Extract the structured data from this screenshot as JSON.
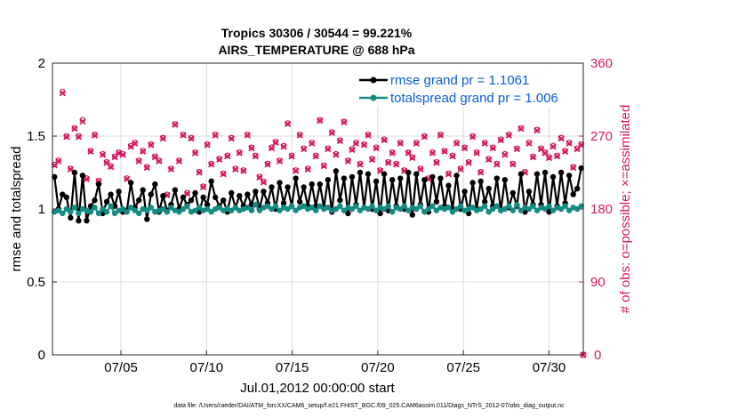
{
  "chart_data": {
    "type": "line",
    "title": "Tropics 30306 / 30544 = 99.221%",
    "subtitle": "AIRS_TEMPERATURE @ 688 hPa",
    "xlabel": "Jul.01,2012 00:00:00 start",
    "ylabel_left": "rmse and totalspread",
    "ylabel_right": "# of obs: o=possible; ×=assimilated",
    "footer": "data file: /Users/raeder/DAI/ATM_forcXX/CAM6_setup/f.e21.FHIST_BGC.f09_025.CAM6assim.011/Diags_NTrS_2012-07/obs_diag_output.nc",
    "xlim_days": [
      1,
      32
    ],
    "x_tick_labels": [
      "07/05",
      "07/10",
      "07/15",
      "07/20",
      "07/25",
      "07/30"
    ],
    "x_tick_days": [
      5,
      10,
      15,
      20,
      25,
      30
    ],
    "ylim_left": [
      0,
      2
    ],
    "y_ticks_left": [
      "0",
      "0.5",
      "1",
      "1.5",
      "2"
    ],
    "ylim_right": [
      0,
      360
    ],
    "y_ticks_right": [
      "0",
      "90",
      "180",
      "270",
      "360"
    ],
    "colors": {
      "rmse": "#000000",
      "spread": "#138a84",
      "obs": "#d6195e",
      "legend_text": "#0b5ed7",
      "grid": "#dcdcdc"
    },
    "series": [
      {
        "name": "rmse",
        "legend": "rmse grand pr = 1.1061",
        "color": "#000000",
        "values": [
          1.22,
          1.0,
          1.1,
          1.08,
          0.94,
          1.25,
          0.92,
          1.23,
          0.92,
          1.02,
          1.06,
          1.17,
          0.97,
          1.05,
          1.1,
          1.02,
          1.12,
          0.98,
          0.99,
          1.18,
          1.01,
          1.06,
          1.13,
          0.93,
          1.1,
          1.17,
          0.98,
          1.09,
          0.99,
          1.03,
          1.13,
          1.0,
          1.08,
          1.03,
          1.06,
          1.11,
          0.98,
          1.08,
          1.03,
          1.19,
          1.08,
          1.02,
          1.06,
          0.98,
          1.11,
          1.01,
          1.09,
          1.02,
          1.1,
          1.03,
          1.12,
          1.0,
          1.12,
          1.04,
          1.15,
          1.0,
          1.18,
          1.04,
          1.15,
          1.02,
          1.21,
          1.05,
          1.15,
          1.02,
          1.17,
          1.02,
          1.17,
          1.01,
          1.2,
          0.98,
          1.26,
          1.06,
          1.21,
          0.97,
          1.22,
          1.03,
          1.25,
          1.01,
          1.24,
          1.0,
          1.19,
          0.97,
          1.24,
          0.99,
          1.2,
          1.02,
          1.21,
          1.0,
          1.25,
          0.96,
          1.24,
          1.03,
          1.2,
          0.98,
          1.22,
          1.05,
          1.21,
          1.02,
          1.16,
          1.0,
          1.23,
          1.0,
          1.12,
          0.97,
          1.18,
          1.0,
          1.19,
          1.05,
          1.14,
          1.02,
          1.21,
          0.99,
          1.2,
          1.01,
          1.11,
          1.02,
          1.24,
          0.98,
          1.12,
          1.03,
          1.24,
          1.03,
          1.25,
          0.98,
          1.22,
          1.02,
          1.25,
          1.04,
          1.23,
          1.1,
          1.14,
          1.28
        ]
      },
      {
        "name": "totalspread",
        "legend": "totalspread grand pr = 1.006",
        "color": "#138a84",
        "values": [
          0.98,
          0.99,
          0.97,
          1.0,
          0.98,
          1.01,
          0.97,
          1.0,
          0.99,
          0.98,
          1.01,
          0.97,
          1.0,
          0.98,
          1.02,
          0.97,
          0.99,
          1.0,
          0.98,
          1.01,
          0.99,
          0.97,
          1.0,
          0.99,
          1.01,
          0.98,
          0.99,
          1.0,
          0.98,
          1.01,
          0.99,
          0.98,
          1.0,
          1.02,
          0.98,
          0.99,
          1.01,
          0.99,
          1.0,
          0.98,
          1.0,
          1.01,
          0.99,
          1.0,
          0.99,
          1.01,
          0.99,
          1.0,
          1.01,
          0.99,
          1.03,
          0.99,
          1.01,
          1.02,
          1.0,
          1.02,
          0.99,
          1.01,
          1.0,
          1.02,
          0.99,
          1.01,
          1.02,
          1.0,
          1.01,
          0.99,
          1.02,
          1.0,
          1.01,
          0.99,
          1.0,
          1.02,
          0.99,
          1.01,
          1.0,
          1.02,
          0.99,
          1.01,
          1.0,
          1.02,
          0.99,
          1.01,
          1.0,
          1.02,
          0.98,
          1.01,
          1.0,
          1.02,
          0.99,
          1.01,
          1.0,
          1.02,
          0.98,
          1.0,
          1.02,
          0.99,
          1.01,
          1.0,
          1.01,
          0.98,
          1.0,
          1.02,
          0.99,
          1.0,
          1.01,
          0.99,
          1.0,
          1.02,
          0.98,
          1.0,
          1.02,
          0.99,
          1.0,
          1.02,
          0.99,
          1.03,
          0.99,
          1.01,
          1.0,
          1.02,
          0.99,
          1.01,
          1.0,
          1.02,
          0.99,
          1.01,
          1.0,
          1.02,
          0.99,
          1.01,
          1.0,
          1.02
        ]
      },
      {
        "name": "obs_possible",
        "legend": "",
        "color": "#d6195e",
        "values": [
          235,
          240,
          325,
          270,
          230,
          280,
          270,
          290,
          218,
          252,
          272,
          215,
          248,
          238,
          233,
          245,
          250,
          248,
          218,
          258,
          262,
          240,
          252,
          232,
          260,
          245,
          240,
          268,
          198,
          230,
          285,
          240,
          272,
          200,
          268,
          250,
          226,
          208,
          260,
          236,
          272,
          242,
          224,
          246,
          268,
          230,
          250,
          228,
          272,
          256,
          246,
          220,
          214,
          236,
          256,
          263,
          240,
          258,
          286,
          246,
          228,
          272,
          255,
          230,
          262,
          246,
          290,
          234,
          255,
          275,
          248,
          265,
          288,
          240,
          254,
          262,
          236,
          260,
          272,
          242,
          256,
          228,
          266,
          238,
          250,
          236,
          262,
          228,
          250,
          244,
          262,
          230,
          270,
          218,
          250,
          238,
          272,
          252,
          224,
          246,
          262,
          230,
          256,
          238,
          270,
          250,
          226,
          262,
          242,
          256,
          236,
          266,
          248,
          272,
          236,
          255,
          280,
          226,
          262,
          245,
          278,
          255,
          250,
          244,
          258,
          246,
          268,
          252,
          262,
          232,
          255,
          260
        ]
      },
      {
        "name": "obs_assimilated",
        "legend": "",
        "color": "#d6195e",
        "values": [
          234,
          239,
          323,
          269,
          229,
          279,
          269,
          288,
          217,
          251,
          271,
          214,
          247,
          237,
          232,
          244,
          249,
          247,
          217,
          257,
          261,
          239,
          251,
          231,
          259,
          244,
          239,
          267,
          197,
          229,
          284,
          239,
          271,
          199,
          267,
          249,
          225,
          207,
          259,
          235,
          271,
          241,
          223,
          245,
          267,
          229,
          249,
          227,
          271,
          255,
          245,
          219,
          213,
          235,
          255,
          262,
          239,
          257,
          285,
          245,
          227,
          271,
          254,
          229,
          261,
          245,
          289,
          233,
          254,
          274,
          247,
          264,
          287,
          239,
          253,
          261,
          235,
          259,
          271,
          241,
          255,
          227,
          265,
          237,
          249,
          235,
          261,
          227,
          249,
          243,
          261,
          229,
          269,
          217,
          249,
          237,
          271,
          251,
          223,
          245,
          261,
          229,
          255,
          237,
          269,
          249,
          225,
          261,
          241,
          255,
          235,
          265,
          247,
          271,
          235,
          254,
          279,
          225,
          261,
          244,
          277,
          254,
          249,
          243,
          257,
          245,
          267,
          251,
          261,
          231,
          254,
          259
        ]
      }
    ]
  }
}
